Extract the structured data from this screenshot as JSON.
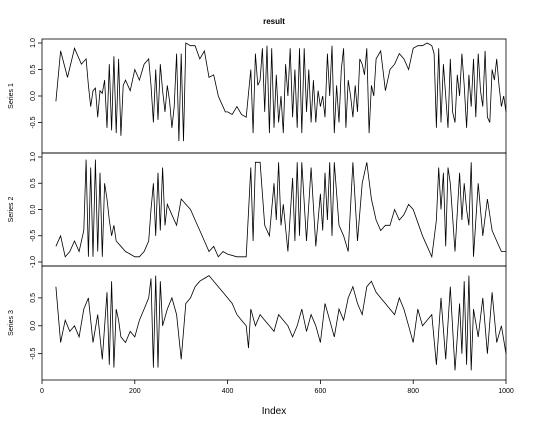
{
  "chart_data": {
    "type": "line",
    "title": "result",
    "xlabel": "Index",
    "xlim": [
      0,
      1000
    ],
    "xticks": [
      0,
      200,
      400,
      600,
      800,
      1000
    ],
    "series": [
      {
        "name": "Series 1",
        "ylim": [
          -1.0,
          1.0
        ],
        "yticks": [
          -0.5,
          0.0,
          0.5,
          1.0
        ],
        "x": [
          30,
          40,
          55,
          70,
          85,
          95,
          100,
          105,
          110,
          115,
          120,
          125,
          130,
          135,
          140,
          145,
          150,
          155,
          160,
          165,
          170,
          175,
          180,
          190,
          200,
          210,
          220,
          230,
          235,
          240,
          245,
          250,
          255,
          260,
          265,
          270,
          275,
          280,
          285,
          290,
          295,
          300,
          305,
          310,
          320,
          330,
          340,
          350,
          360,
          370,
          375,
          380,
          385,
          390,
          395,
          400,
          410,
          420,
          430,
          440,
          450,
          455,
          460,
          465,
          470,
          475,
          480,
          485,
          490,
          495,
          500,
          505,
          510,
          515,
          520,
          525,
          530,
          535,
          540,
          545,
          550,
          555,
          560,
          565,
          570,
          575,
          580,
          585,
          590,
          595,
          600,
          605,
          610,
          615,
          620,
          625,
          630,
          635,
          640,
          645,
          650,
          655,
          660,
          665,
          670,
          675,
          680,
          685,
          690,
          695,
          700,
          705,
          710,
          715,
          720,
          730,
          740,
          750,
          760,
          770,
          780,
          790,
          800,
          810,
          820,
          830,
          840,
          845,
          850,
          855,
          860,
          865,
          870,
          875,
          880,
          885,
          890,
          895,
          900,
          905,
          910,
          915,
          920,
          925,
          930,
          935,
          940,
          945,
          950,
          955,
          960,
          965,
          970,
          975,
          980,
          985,
          990,
          995,
          1000
        ],
        "y": [
          -0.1,
          0.85,
          0.35,
          0.9,
          0.6,
          0.7,
          0.2,
          -0.2,
          0.1,
          0.15,
          -0.4,
          0.1,
          0.05,
          0.3,
          -0.6,
          0.6,
          -0.65,
          0.75,
          -0.7,
          0.7,
          -0.75,
          0.2,
          0.3,
          0.1,
          0.5,
          0.3,
          0.6,
          0.7,
          0.2,
          -0.5,
          0.5,
          -0.45,
          0.6,
          0.1,
          -0.3,
          0.2,
          -0.1,
          -0.6,
          -0.2,
          0.8,
          -0.85,
          0.8,
          -0.85,
          1.0,
          0.95,
          0.95,
          0.7,
          0.85,
          0.35,
          0.4,
          0.2,
          0.0,
          -0.1,
          -0.2,
          -0.3,
          -0.3,
          -0.35,
          -0.2,
          -0.35,
          -0.4,
          0.5,
          -0.7,
          0.8,
          0.2,
          0.3,
          0.9,
          -0.3,
          0.95,
          -0.7,
          0.9,
          -0.6,
          0.4,
          -0.5,
          0.0,
          -0.7,
          0.6,
          0.0,
          0.9,
          -0.4,
          0.5,
          -0.6,
          0.9,
          -0.7,
          0.9,
          -0.3,
          0.5,
          -0.5,
          0.3,
          -0.5,
          0.1,
          -0.2,
          0.0,
          -0.4,
          0.8,
          0.0,
          0.95,
          -0.7,
          0.2,
          -0.5,
          0.5,
          0.9,
          -0.6,
          0.3,
          0.0,
          -0.4,
          0.2,
          -0.3,
          0.7,
          0.6,
          0.4,
          0.9,
          -0.7,
          0.2,
          0.0,
          0.7,
          0.85,
          0.1,
          0.5,
          0.6,
          0.8,
          0.7,
          0.5,
          0.9,
          0.95,
          0.95,
          1.0,
          0.95,
          0.8,
          -0.6,
          0.9,
          -0.5,
          0.6,
          0.0,
          -0.6,
          0.7,
          -0.3,
          -0.5,
          0.4,
          0.0,
          0.8,
          0.2,
          -0.6,
          0.4,
          -0.2,
          0.7,
          -0.4,
          0.8,
          0.1,
          -0.2,
          0.85,
          -0.4,
          -0.5,
          0.5,
          0.3,
          0.7,
          0.2,
          -0.2,
          0.0,
          -0.3
        ]
      },
      {
        "name": "Series 2",
        "ylim": [
          -1.0,
          1.0
        ],
        "yticks": [
          -1.0,
          -0.5,
          0.0,
          0.5,
          1.0
        ],
        "x": [
          30,
          40,
          50,
          60,
          70,
          80,
          90,
          95,
          100,
          105,
          110,
          115,
          120,
          125,
          130,
          135,
          140,
          145,
          150,
          155,
          160,
          170,
          180,
          190,
          200,
          210,
          220,
          230,
          235,
          240,
          245,
          250,
          255,
          260,
          265,
          270,
          280,
          290,
          300,
          310,
          320,
          330,
          340,
          350,
          360,
          370,
          380,
          390,
          400,
          420,
          440,
          450,
          455,
          460,
          470,
          480,
          490,
          500,
          505,
          510,
          515,
          520,
          530,
          540,
          545,
          550,
          555,
          560,
          570,
          580,
          590,
          600,
          605,
          610,
          615,
          620,
          625,
          630,
          640,
          650,
          660,
          670,
          680,
          690,
          700,
          710,
          720,
          730,
          740,
          750,
          760,
          770,
          780,
          790,
          800,
          820,
          840,
          850,
          855,
          860,
          865,
          870,
          875,
          880,
          890,
          900,
          905,
          910,
          915,
          920,
          925,
          930,
          940,
          950,
          960,
          970,
          980,
          990,
          1000
        ],
        "y": [
          -0.7,
          -0.5,
          -0.9,
          -0.8,
          -0.6,
          -0.8,
          -0.4,
          0.95,
          -0.9,
          0.8,
          -0.9,
          0.95,
          -0.8,
          0.7,
          -0.9,
          0.5,
          0.2,
          -0.2,
          -0.5,
          -0.3,
          -0.6,
          -0.7,
          -0.8,
          -0.85,
          -0.9,
          -0.9,
          -0.8,
          -0.6,
          0.0,
          0.5,
          -0.5,
          0.7,
          -0.4,
          0.8,
          -0.3,
          0.1,
          -0.1,
          -0.3,
          0.2,
          0.1,
          0.0,
          -0.2,
          -0.4,
          -0.6,
          -0.8,
          -0.7,
          -0.9,
          -0.8,
          -0.85,
          -0.9,
          -0.9,
          0.8,
          -0.6,
          0.9,
          0.9,
          -0.3,
          -0.5,
          0.5,
          -0.2,
          0.9,
          -0.3,
          0.1,
          -0.8,
          0.6,
          -0.6,
          0.9,
          -0.5,
          0.9,
          -0.6,
          0.8,
          -0.7,
          0.3,
          -0.4,
          0.7,
          -0.2,
          0.9,
          -0.5,
          0.9,
          -0.3,
          -0.5,
          -0.8,
          0.9,
          -0.6,
          0.5,
          0.9,
          0.2,
          -0.2,
          -0.4,
          -0.3,
          -0.3,
          0.0,
          -0.2,
          -0.1,
          0.1,
          0.0,
          -0.5,
          -0.9,
          -0.2,
          0.8,
          0.0,
          0.7,
          -0.7,
          0.8,
          0.5,
          -0.8,
          0.7,
          -0.2,
          0.5,
          0.0,
          -0.3,
          0.9,
          -0.9,
          0.5,
          -0.5,
          0.2,
          -0.4,
          -0.6,
          -0.8,
          -0.8
        ]
      },
      {
        "name": "Series 3",
        "ylim": [
          -0.9,
          1.0
        ],
        "yticks": [
          -0.5,
          0.0,
          0.5
        ],
        "x": [
          30,
          40,
          50,
          60,
          70,
          80,
          90,
          100,
          110,
          120,
          130,
          140,
          145,
          150,
          155,
          160,
          165,
          170,
          180,
          190,
          200,
          210,
          220,
          230,
          235,
          240,
          245,
          250,
          255,
          260,
          270,
          280,
          290,
          300,
          310,
          320,
          330,
          340,
          350,
          360,
          370,
          380,
          390,
          400,
          410,
          420,
          430,
          440,
          445,
          450,
          460,
          470,
          480,
          490,
          500,
          510,
          520,
          530,
          540,
          550,
          560,
          570,
          580,
          590,
          600,
          610,
          620,
          630,
          640,
          650,
          660,
          670,
          680,
          690,
          700,
          710,
          720,
          730,
          740,
          750,
          760,
          770,
          780,
          790,
          800,
          810,
          820,
          830,
          840,
          850,
          860,
          870,
          880,
          890,
          900,
          905,
          910,
          915,
          920,
          925,
          930,
          940,
          950,
          960,
          970,
          980,
          990,
          1000
        ],
        "y": [
          0.7,
          -0.3,
          0.1,
          -0.1,
          0.0,
          -0.2,
          0.3,
          0.5,
          -0.3,
          0.2,
          -0.6,
          0.6,
          -0.7,
          0.8,
          -0.75,
          0.3,
          0.1,
          -0.2,
          -0.3,
          -0.1,
          -0.2,
          0.1,
          0.3,
          0.5,
          0.85,
          -0.75,
          0.9,
          -0.75,
          0.8,
          0.0,
          0.3,
          0.5,
          0.2,
          -0.6,
          0.4,
          0.5,
          0.7,
          0.8,
          0.85,
          0.9,
          0.8,
          0.7,
          0.6,
          0.5,
          0.4,
          0.2,
          0.1,
          0.0,
          -0.4,
          0.3,
          0.0,
          0.2,
          0.1,
          0.0,
          -0.1,
          0.2,
          0.1,
          0.0,
          -0.2,
          0.0,
          0.3,
          -0.1,
          0.2,
          0.0,
          -0.3,
          0.4,
          0.1,
          -0.2,
          0.3,
          0.1,
          0.5,
          0.7,
          0.4,
          0.2,
          0.7,
          0.8,
          0.6,
          0.5,
          0.4,
          0.3,
          0.2,
          0.5,
          0.3,
          0.0,
          -0.3,
          0.3,
          0.0,
          0.1,
          0.2,
          -0.7,
          0.5,
          -0.6,
          0.7,
          -0.8,
          0.4,
          -0.5,
          0.8,
          -0.7,
          0.9,
          -0.8,
          0.3,
          -0.2,
          0.5,
          -0.5,
          0.6,
          -0.3,
          0.0,
          -0.5
        ]
      }
    ]
  }
}
